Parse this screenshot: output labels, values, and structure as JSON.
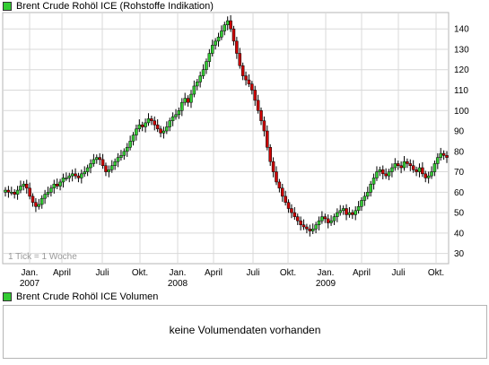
{
  "price_panel": {
    "title": "Brent Crude Rohöl ICE (Rohstoffe Indikation)",
    "note": "1 Tick = 1 Woche"
  },
  "volume_panel": {
    "title": "Brent Crude Rohöl ICE Volumen",
    "message": "keine Volumendaten vorhanden"
  },
  "colors": {
    "up": "#33cc33",
    "down": "#cc0000",
    "grid": "#d9d9d9",
    "legend_swatch": "#33cc33"
  },
  "chart_data": {
    "type": "candlestick",
    "title": "Brent Crude Rohöl ICE (Rohstoffe Indikation)",
    "ylim": [
      25,
      148
    ],
    "y_ticks": [
      30,
      40,
      50,
      60,
      70,
      80,
      90,
      100,
      110,
      120,
      130,
      140
    ],
    "x_ticks": [
      "Jan.",
      "April",
      "Juli",
      "Okt.",
      "Jan.",
      "April",
      "Juli",
      "Okt.",
      "Jan.",
      "April",
      "Juli",
      "Okt."
    ],
    "year_labels": [
      "2007",
      "2008",
      "2009"
    ],
    "grid": true,
    "weekly_close": [
      61,
      60,
      60,
      59,
      61,
      63,
      64,
      62,
      58,
      55,
      53,
      54,
      57,
      59,
      60,
      62,
      64,
      63,
      65,
      67,
      67,
      68,
      69,
      68,
      67,
      69,
      70,
      72,
      74,
      76,
      77,
      76,
      73,
      70,
      71,
      73,
      75,
      77,
      78,
      80,
      82,
      85,
      88,
      91,
      93,
      92,
      94,
      96,
      95,
      93,
      91,
      89,
      90,
      92,
      95,
      97,
      98,
      100,
      104,
      106,
      104,
      108,
      112,
      114,
      117,
      120,
      124,
      128,
      132,
      134,
      136,
      139,
      142,
      144,
      140,
      134,
      128,
      122,
      117,
      115,
      113,
      110,
      105,
      100,
      95,
      90,
      82,
      75,
      70,
      65,
      62,
      58,
      55,
      52,
      50,
      48,
      46,
      44,
      43,
      42,
      41,
      42,
      44,
      46,
      48,
      47,
      45,
      46,
      48,
      50,
      51,
      52,
      49,
      50,
      49,
      51,
      53,
      56,
      58,
      60,
      64,
      67,
      70,
      71,
      69,
      68,
      70,
      72,
      74,
      73,
      72,
      75,
      74,
      73,
      71,
      70,
      72,
      69,
      67,
      68,
      70,
      74,
      77,
      79,
      78,
      77
    ]
  }
}
